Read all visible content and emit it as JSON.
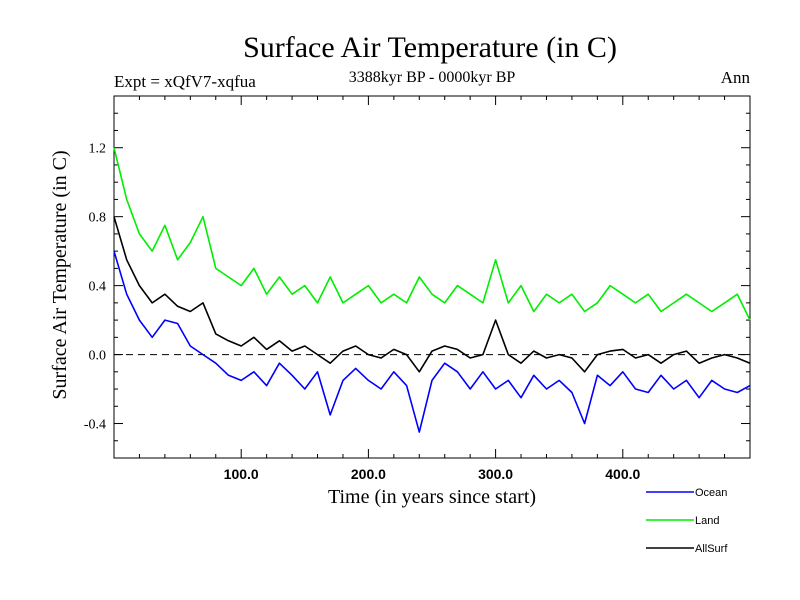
{
  "chart_data": {
    "type": "line",
    "title": "Surface Air Temperature (in C)",
    "subtitle": "3388kyr BP - 0000kyr BP",
    "expt_label": "Expt = xQfV7-xqfua",
    "season_label": "Ann",
    "xlabel": "Time (in years since start)",
    "ylabel": "Surface Air Temperature (in C)",
    "xlim": [
      0,
      500
    ],
    "ylim": [
      -0.6,
      1.5
    ],
    "x_ticks": [
      100,
      200,
      300,
      400
    ],
    "x_tick_labels": [
      "100.0",
      "200.0",
      "300.0",
      "400.0"
    ],
    "y_ticks": [
      -0.4,
      0.0,
      0.4,
      0.8,
      1.2
    ],
    "y_tick_labels": [
      "-0.4",
      "0.0",
      "0.4",
      "0.8",
      "1.2"
    ],
    "reference_line": {
      "y": 0.0,
      "style": "dashed"
    },
    "legend_position": "bottom-right",
    "series": [
      {
        "name": "Ocean",
        "color": "#0000ff",
        "x": [
          0,
          10,
          20,
          30,
          40,
          50,
          60,
          70,
          80,
          90,
          100,
          110,
          120,
          130,
          140,
          150,
          160,
          170,
          180,
          190,
          200,
          210,
          220,
          230,
          240,
          250,
          260,
          270,
          280,
          290,
          300,
          310,
          320,
          330,
          340,
          350,
          360,
          370,
          380,
          390,
          400,
          410,
          420,
          430,
          440,
          450,
          460,
          470,
          480,
          490,
          500
        ],
        "values": [
          0.6,
          0.35,
          0.2,
          0.1,
          0.2,
          0.18,
          0.05,
          0.0,
          -0.05,
          -0.12,
          -0.15,
          -0.1,
          -0.18,
          -0.05,
          -0.12,
          -0.2,
          -0.1,
          -0.35,
          -0.15,
          -0.08,
          -0.15,
          -0.2,
          -0.1,
          -0.18,
          -0.45,
          -0.15,
          -0.05,
          -0.1,
          -0.2,
          -0.1,
          -0.2,
          -0.15,
          -0.25,
          -0.12,
          -0.2,
          -0.15,
          -0.22,
          -0.4,
          -0.12,
          -0.18,
          -0.1,
          -0.2,
          -0.22,
          -0.12,
          -0.2,
          -0.15,
          -0.25,
          -0.15,
          -0.2,
          -0.22,
          -0.18
        ]
      },
      {
        "name": "Land",
        "color": "#00ee00",
        "x": [
          0,
          10,
          20,
          30,
          40,
          50,
          60,
          70,
          80,
          90,
          100,
          110,
          120,
          130,
          140,
          150,
          160,
          170,
          180,
          190,
          200,
          210,
          220,
          230,
          240,
          250,
          260,
          270,
          280,
          290,
          300,
          310,
          320,
          330,
          340,
          350,
          360,
          370,
          380,
          390,
          400,
          410,
          420,
          430,
          440,
          450,
          460,
          470,
          480,
          490,
          500
        ],
        "values": [
          1.2,
          0.9,
          0.7,
          0.6,
          0.75,
          0.55,
          0.65,
          0.8,
          0.5,
          0.45,
          0.4,
          0.5,
          0.35,
          0.45,
          0.35,
          0.4,
          0.3,
          0.45,
          0.3,
          0.35,
          0.4,
          0.3,
          0.35,
          0.3,
          0.45,
          0.35,
          0.3,
          0.4,
          0.35,
          0.3,
          0.55,
          0.3,
          0.4,
          0.25,
          0.35,
          0.3,
          0.35,
          0.25,
          0.3,
          0.4,
          0.35,
          0.3,
          0.35,
          0.25,
          0.3,
          0.35,
          0.3,
          0.25,
          0.3,
          0.35,
          0.2
        ]
      },
      {
        "name": "AllSurf",
        "color": "#000000",
        "x": [
          0,
          10,
          20,
          30,
          40,
          50,
          60,
          70,
          80,
          90,
          100,
          110,
          120,
          130,
          140,
          150,
          160,
          170,
          180,
          190,
          200,
          210,
          220,
          230,
          240,
          250,
          260,
          270,
          280,
          290,
          300,
          310,
          320,
          330,
          340,
          350,
          360,
          370,
          380,
          390,
          400,
          410,
          420,
          430,
          440,
          450,
          460,
          470,
          480,
          490,
          500
        ],
        "values": [
          0.8,
          0.55,
          0.4,
          0.3,
          0.35,
          0.28,
          0.25,
          0.3,
          0.12,
          0.08,
          0.05,
          0.1,
          0.03,
          0.08,
          0.02,
          0.05,
          0.0,
          -0.05,
          0.02,
          0.05,
          0.0,
          -0.02,
          0.03,
          0.0,
          -0.1,
          0.02,
          0.05,
          0.03,
          -0.02,
          0.0,
          0.2,
          0.0,
          -0.05,
          0.02,
          -0.02,
          0.0,
          -0.02,
          -0.1,
          0.0,
          0.02,
          0.03,
          -0.02,
          0.0,
          -0.05,
          0.0,
          0.02,
          -0.05,
          -0.02,
          0.0,
          -0.02,
          -0.05
        ]
      }
    ]
  }
}
